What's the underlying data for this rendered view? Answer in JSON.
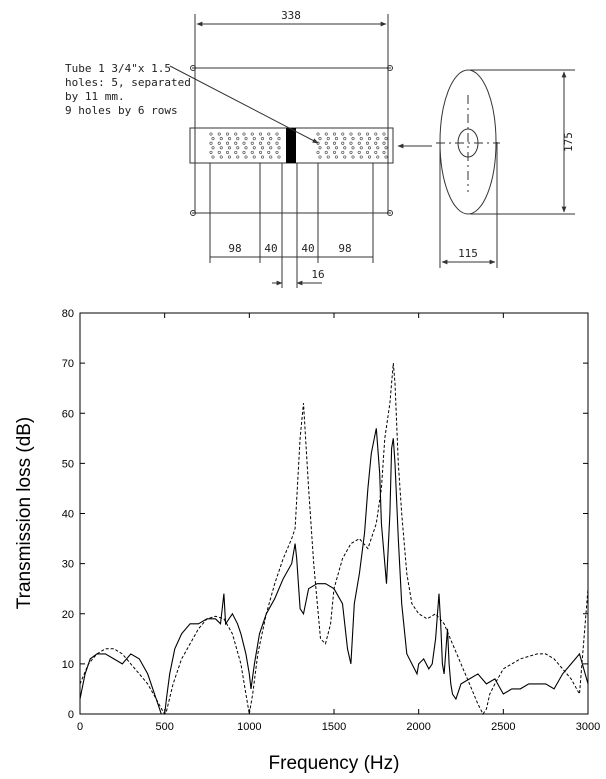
{
  "drawing": {
    "note_lines": [
      "Tube 1 3/4\"x 1.5",
      "holes: 5, separated",
      "by 11 mm.",
      "9 holes by 6 rows"
    ],
    "dims": {
      "total_length": "338",
      "height": "175",
      "width": "115",
      "seg_left": "98",
      "seg_mid_left": "40",
      "seg_mid_right": "40",
      "seg_right": "98",
      "gap": "16"
    }
  },
  "chart_data": {
    "type": "line",
    "title": "",
    "xlabel": "Frequency (Hz)",
    "ylabel": "Transmission loss (dB)",
    "xlim": [
      0,
      3000
    ],
    "ylim": [
      0,
      80
    ],
    "xticks": [
      0,
      500,
      1000,
      1500,
      2000,
      2500,
      3000
    ],
    "yticks": [
      0,
      10,
      20,
      30,
      40,
      50,
      60,
      70,
      80
    ],
    "grid": false,
    "legend": "none",
    "series": [
      {
        "style": "solid",
        "x": [
          0,
          30,
          60,
          100,
          150,
          200,
          250,
          300,
          350,
          400,
          430,
          460,
          480,
          500,
          510,
          530,
          560,
          600,
          650,
          700,
          750,
          800,
          830,
          850,
          860,
          880,
          900,
          930,
          950,
          980,
          1000,
          1010,
          1030,
          1060,
          1100,
          1150,
          1200,
          1250,
          1270,
          1280,
          1300,
          1320,
          1350,
          1400,
          1450,
          1500,
          1550,
          1580,
          1600,
          1620,
          1650,
          1680,
          1700,
          1720,
          1750,
          1770,
          1780,
          1800,
          1810,
          1830,
          1840,
          1850,
          1860,
          1880,
          1900,
          1930,
          1960,
          1990,
          2000,
          2030,
          2060,
          2080,
          2100,
          2120,
          2130,
          2140,
          2150,
          2170,
          2180,
          2190,
          2200,
          2220,
          2250,
          2300,
          2350,
          2400,
          2450,
          2500,
          2550,
          2600,
          2650,
          2700,
          2750,
          2800,
          2850,
          2900,
          2950,
          3000
        ],
        "y": [
          3,
          8,
          11,
          12,
          12,
          11,
          10,
          12,
          11,
          8,
          5,
          2,
          0,
          0,
          3,
          8,
          13,
          16,
          18,
          18,
          19,
          19,
          18,
          24,
          18,
          19,
          20,
          18,
          16,
          12,
          8,
          5,
          10,
          16,
          20,
          23,
          27,
          30,
          34,
          31,
          21,
          20,
          25,
          26,
          26,
          25,
          22,
          13,
          10,
          22,
          28,
          36,
          45,
          52,
          57,
          48,
          38,
          30,
          26,
          40,
          53,
          55,
          50,
          35,
          22,
          12,
          10,
          8,
          10,
          11,
          9,
          10,
          15,
          24,
          18,
          10,
          8,
          17,
          10,
          6,
          4,
          3,
          6,
          7,
          8,
          6,
          7,
          4,
          5,
          5,
          6,
          6,
          6,
          5,
          8,
          10,
          12,
          6
        ]
      },
      {
        "style": "dashed",
        "x": [
          0,
          50,
          100,
          150,
          200,
          250,
          300,
          350,
          400,
          450,
          490,
          500,
          510,
          550,
          600,
          650,
          700,
          750,
          800,
          850,
          900,
          950,
          980,
          1000,
          1020,
          1050,
          1100,
          1150,
          1200,
          1250,
          1270,
          1300,
          1320,
          1350,
          1380,
          1420,
          1450,
          1480,
          1500,
          1550,
          1600,
          1650,
          1700,
          1750,
          1780,
          1800,
          1830,
          1850,
          1860,
          1880,
          1900,
          1930,
          1960,
          2000,
          2050,
          2100,
          2150,
          2200,
          2250,
          2300,
          2350,
          2380,
          2400,
          2420,
          2450,
          2500,
          2550,
          2600,
          2650,
          2700,
          2750,
          2800,
          2850,
          2900,
          2950,
          3000
        ],
        "y": [
          6,
          10,
          12,
          13,
          13,
          12,
          10,
          8,
          6,
          3,
          0.5,
          0,
          0.5,
          6,
          11,
          14,
          17,
          19,
          19.5,
          19,
          16,
          10,
          4,
          0,
          4,
          12,
          20,
          26,
          31,
          35,
          37,
          55,
          62,
          45,
          30,
          15,
          14,
          18,
          25,
          31,
          34,
          35,
          33,
          38,
          45,
          55,
          62,
          70,
          66,
          50,
          40,
          28,
          22,
          20,
          19,
          20,
          18,
          14,
          10,
          6,
          2,
          0,
          1,
          4,
          6,
          9,
          10,
          11,
          11.5,
          12,
          12,
          11,
          9,
          7,
          4,
          25
        ]
      }
    ]
  }
}
